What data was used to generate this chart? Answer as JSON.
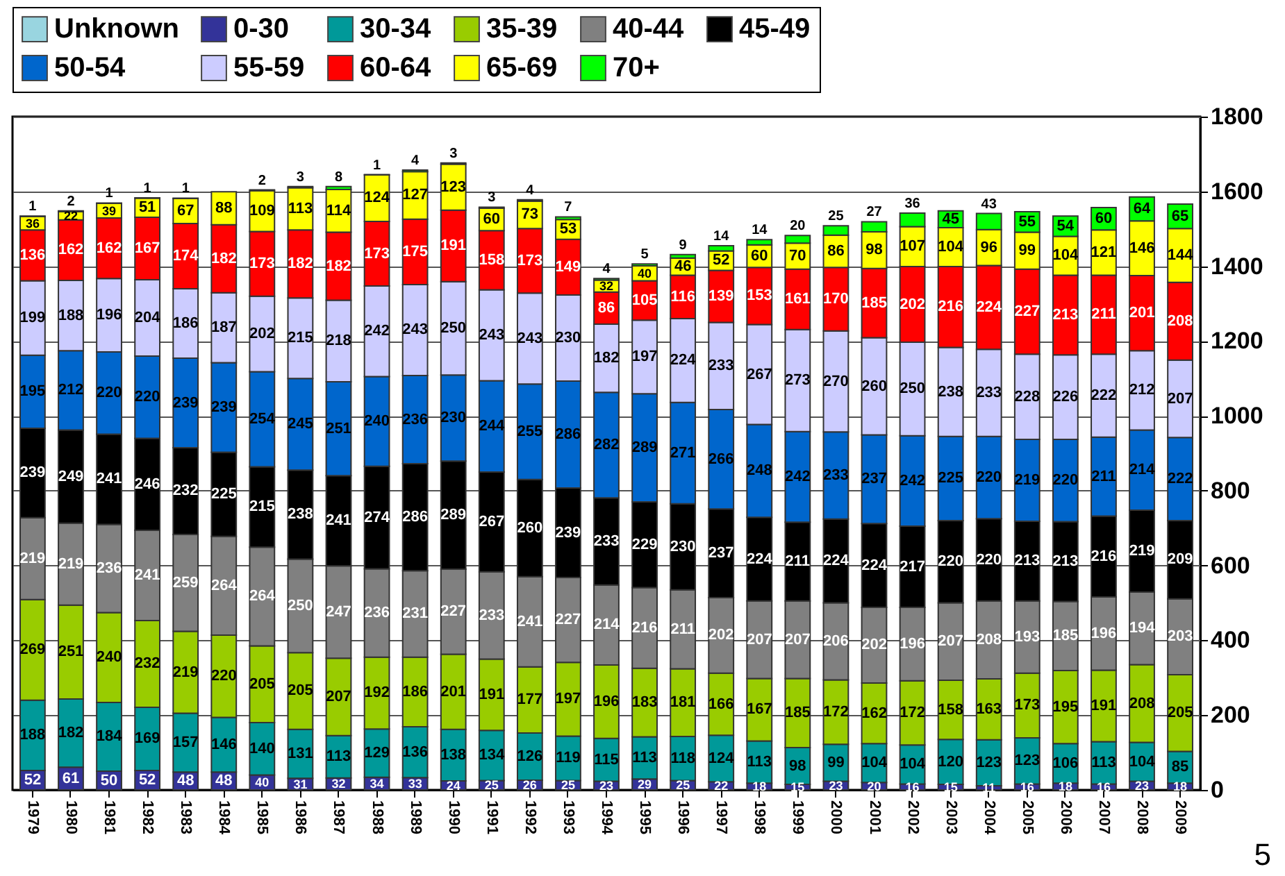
{
  "chart_data": {
    "type": "bar",
    "stacked": true,
    "data_labels": true,
    "grid": "y",
    "legend": "top",
    "ylim": [
      0,
      1800
    ],
    "yticks": [
      0,
      200,
      400,
      600,
      800,
      1000,
      1200,
      1400,
      1600,
      1800
    ],
    "categories": [
      "1979",
      "1980",
      "1981",
      "1982",
      "1983",
      "1984",
      "1985",
      "1986",
      "1987",
      "1988",
      "1989",
      "1990",
      "1991",
      "1992",
      "1993",
      "1994",
      "1995",
      "1996",
      "1997",
      "1998",
      "1999",
      "2000",
      "2001",
      "2002",
      "2003",
      "2004",
      "2005",
      "2006",
      "2007",
      "2008",
      "2009"
    ],
    "series": [
      {
        "name": "Unknown",
        "color": "#99d5e0",
        "values": [
          null,
          null,
          null,
          null,
          null,
          null,
          null,
          null,
          null,
          null,
          null,
          null,
          null,
          null,
          null,
          null,
          null,
          null,
          null,
          null,
          null,
          null,
          null,
          null,
          null,
          null,
          null,
          null,
          null,
          null,
          null
        ]
      },
      {
        "name": "0-30",
        "color": "#333399",
        "values": [
          52,
          61,
          50,
          52,
          48,
          48,
          40,
          31,
          32,
          34,
          33,
          24,
          25,
          26,
          25,
          23,
          29,
          25,
          22,
          18,
          15,
          23,
          20,
          16,
          15,
          11,
          16,
          18,
          16,
          23,
          18
        ]
      },
      {
        "name": "30-34",
        "color": "#009999",
        "values": [
          188,
          182,
          184,
          169,
          157,
          146,
          140,
          131,
          113,
          129,
          136,
          138,
          134,
          126,
          119,
          115,
          113,
          118,
          124,
          113,
          98,
          99,
          104,
          104,
          120,
          123,
          123,
          106,
          113,
          104,
          85
        ]
      },
      {
        "name": "35-39",
        "color": "#99cc00",
        "values": [
          269,
          251,
          240,
          232,
          219,
          220,
          205,
          205,
          207,
          192,
          186,
          201,
          191,
          177,
          197,
          196,
          183,
          181,
          166,
          167,
          185,
          172,
          162,
          172,
          158,
          163,
          173,
          195,
          191,
          208,
          205
        ]
      },
      {
        "name": "40-44",
        "color": "#808080",
        "values": [
          219,
          219,
          236,
          241,
          259,
          264,
          264,
          250,
          247,
          236,
          231,
          227,
          233,
          241,
          227,
          214,
          216,
          211,
          202,
          207,
          207,
          206,
          202,
          196,
          207,
          208,
          193,
          185,
          196,
          194,
          203
        ]
      },
      {
        "name": "45-49",
        "color": "#000000",
        "values": [
          239,
          249,
          241,
          246,
          232,
          225,
          215,
          238,
          241,
          274,
          286,
          289,
          267,
          260,
          239,
          233,
          229,
          230,
          237,
          224,
          211,
          224,
          224,
          217,
          220,
          220,
          213,
          213,
          216,
          219,
          209
        ]
      },
      {
        "name": "50-54",
        "color": "#0066cc",
        "values": [
          195,
          212,
          220,
          220,
          239,
          239,
          254,
          245,
          251,
          240,
          236,
          230,
          244,
          255,
          286,
          282,
          289,
          271,
          266,
          248,
          242,
          233,
          237,
          242,
          225,
          220,
          219,
          220,
          211,
          214,
          222
        ]
      },
      {
        "name": "55-59",
        "color": "#ccccff",
        "values": [
          199,
          188,
          196,
          204,
          186,
          187,
          202,
          215,
          218,
          242,
          243,
          250,
          243,
          243,
          230,
          182,
          197,
          224,
          233,
          267,
          273,
          270,
          260,
          250,
          238,
          233,
          228,
          226,
          222,
          212,
          207
        ]
      },
      {
        "name": "60-64",
        "color": "#ff0000",
        "values": [
          136,
          162,
          162,
          167,
          174,
          182,
          173,
          182,
          182,
          173,
          175,
          191,
          158,
          173,
          149,
          86,
          105,
          116,
          139,
          153,
          161,
          170,
          185,
          202,
          216,
          224,
          227,
          213,
          211,
          201,
          208
        ]
      },
      {
        "name": "65-69",
        "color": "#ffff00",
        "values": [
          36,
          22,
          39,
          51,
          67,
          88,
          109,
          113,
          114,
          124,
          127,
          123,
          60,
          73,
          53,
          32,
          40,
          46,
          52,
          60,
          70,
          86,
          98,
          107,
          104,
          96,
          99,
          104,
          121,
          146,
          144
        ]
      },
      {
        "name": "70+",
        "color": "#00ff00",
        "values": [
          1,
          2,
          1,
          1,
          1,
          null,
          2,
          3,
          8,
          1,
          4,
          3,
          3,
          4,
          7,
          4,
          5,
          9,
          14,
          14,
          20,
          25,
          27,
          36,
          45,
          43,
          55,
          54,
          60,
          64,
          65
        ]
      }
    ],
    "annotations": [
      "5"
    ]
  }
}
